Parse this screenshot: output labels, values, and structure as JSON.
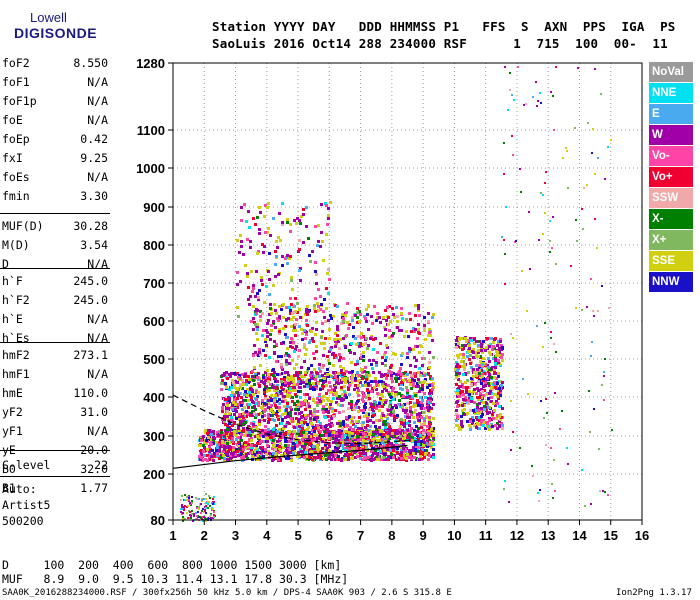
{
  "logo": {
    "line1": "Lowell",
    "line2": "DIGISONDE"
  },
  "header": {
    "line1": "Station YYYY DAY   DDD HHMMSS P1   FFS  S  AXN  PPS  IGA  PS",
    "line2": "SaoLuis 2016 Oct14 288 234000 RSF      1  715  100  00-  11"
  },
  "params_group1": [
    {
      "name": "foF2",
      "value": "8.550"
    },
    {
      "name": "foF1",
      "value": "N/A"
    },
    {
      "name": "foF1p",
      "value": "N/A"
    },
    {
      "name": "foE",
      "value": "N/A"
    },
    {
      "name": "foEp",
      "value": "0.42"
    },
    {
      "name": "fxI",
      "value": "9.25"
    },
    {
      "name": "foEs",
      "value": "N/A"
    },
    {
      "name": "fmin",
      "value": "3.30"
    }
  ],
  "params_group2": [
    {
      "name": "MUF(D)",
      "value": "30.28"
    },
    {
      "name": "M(D)",
      "value": "3.54"
    },
    {
      "name": "D",
      "value": "N/A"
    }
  ],
  "params_group3": [
    {
      "name": "h`F",
      "value": "245.0"
    },
    {
      "name": "h`F2",
      "value": "245.0"
    },
    {
      "name": "h`E",
      "value": "N/A"
    },
    {
      "name": "h`Es",
      "value": "N/A"
    }
  ],
  "params_group4": [
    {
      "name": "hmF2",
      "value": "273.1"
    },
    {
      "name": "hmF1",
      "value": "N/A"
    },
    {
      "name": "hmE",
      "value": "110.0"
    },
    {
      "name": "yF2",
      "value": "31.0"
    },
    {
      "name": "yF1",
      "value": "N/A"
    },
    {
      "name": "yE",
      "value": "20.0"
    },
    {
      "name": "B0",
      "value": "32.0"
    },
    {
      "name": "B1",
      "value": "1.77"
    }
  ],
  "params_group5": [
    {
      "name": "C-level",
      "value": "22"
    }
  ],
  "autoscaling": {
    "line1": "Auto:",
    "line2": "Artist5",
    "line3": "500200"
  },
  "muf_table": {
    "line1": "D     100  200  400  600  800 1000 1500 3000 [km]",
    "line2": "MUF   8.9  9.0  9.5 10.3 11.4 13.1 17.8 30.3 [MHz]"
  },
  "footer": {
    "left": "SAA0K_2016288234000.RSF / 300fx256h 50 kHz 5.0 km / DPS-4 SAA0K 903 / 2.6 S 315.8 E",
    "right": "Ion2Png 1.3.17"
  },
  "legend": [
    {
      "label": "NoVal",
      "color": "#9a9a9a",
      "text_color": "#ffffff"
    },
    {
      "label": "NNE",
      "color": "#00e0f0",
      "text_color": "#ffffff"
    },
    {
      "label": "E",
      "color": "#4aaaf0",
      "text_color": "#ffffff"
    },
    {
      "label": "W",
      "color": "#a000a8",
      "text_color": "#ffffff"
    },
    {
      "label": "Vo-",
      "color": "#ff44a8",
      "text_color": "#ffffff"
    },
    {
      "label": "Vo+",
      "color": "#f00030",
      "text_color": "#ffffff"
    },
    {
      "label": "SSW",
      "color": "#f0a8a8",
      "text_color": "#ffffff"
    },
    {
      "label": "X-",
      "color": "#008000",
      "text_color": "#ffffff"
    },
    {
      "label": "X+",
      "color": "#80b860",
      "text_color": "#ffffff"
    },
    {
      "label": "SSE",
      "color": "#d0d010",
      "text_color": "#ffffff"
    },
    {
      "label": "NNW",
      "color": "#1a10c8",
      "text_color": "#ffffff"
    }
  ],
  "chart_data": {
    "type": "scatter",
    "title": "",
    "xlabel": "",
    "ylabel": "",
    "xlim": [
      1,
      16
    ],
    "ylim": [
      80,
      1280
    ],
    "y_scale": "nonlinear (virtual height)",
    "x_ticks": [
      1,
      2,
      3,
      4,
      5,
      6,
      7,
      8,
      9,
      10,
      11,
      12,
      13,
      14,
      15,
      16
    ],
    "y_ticks": [
      80,
      200,
      300,
      400,
      500,
      600,
      700,
      800,
      900,
      1000,
      1100,
      1280
    ],
    "grid": true,
    "legend_position": "right",
    "echo_regions": [
      {
        "name": "F-trace low",
        "x": [
          1.8,
          9.3
        ],
        "y": [
          240,
          320
        ],
        "density": "high"
      },
      {
        "name": "F-trace main",
        "x": [
          2.5,
          9.3
        ],
        "y": [
          300,
          470
        ],
        "density": "high"
      },
      {
        "name": "F-trace upper",
        "x": [
          3.5,
          9.3
        ],
        "y": [
          440,
          650
        ],
        "density": "medium"
      },
      {
        "name": "spread F",
        "x": [
          3.0,
          6.0
        ],
        "y": [
          600,
          920
        ],
        "density": "low"
      },
      {
        "name": "oblique echoes",
        "x": [
          10.0,
          11.5
        ],
        "y": [
          320,
          560
        ],
        "density": "medium"
      },
      {
        "name": "scattered high",
        "x": [
          11.5,
          15.0
        ],
        "y": [
          120,
          1280
        ],
        "density": "sparse"
      },
      {
        "name": "low echoes",
        "x": [
          1.2,
          2.3
        ],
        "y": [
          80,
          150
        ],
        "density": "sparse"
      }
    ],
    "profile_curves": [
      {
        "name": "h-profile (solid)",
        "points": [
          [
            1,
            215
          ],
          [
            3,
            235
          ],
          [
            5,
            250
          ],
          [
            7,
            262
          ],
          [
            8.5,
            275
          ]
        ]
      },
      {
        "name": "X-mode trace (dashed)",
        "points": [
          [
            1,
            405
          ],
          [
            2,
            365
          ],
          [
            3,
            330
          ],
          [
            4,
            305
          ],
          [
            5,
            290
          ],
          [
            6,
            282
          ],
          [
            7,
            280
          ],
          [
            8,
            285
          ],
          [
            8.7,
            290
          ]
        ]
      }
    ]
  }
}
